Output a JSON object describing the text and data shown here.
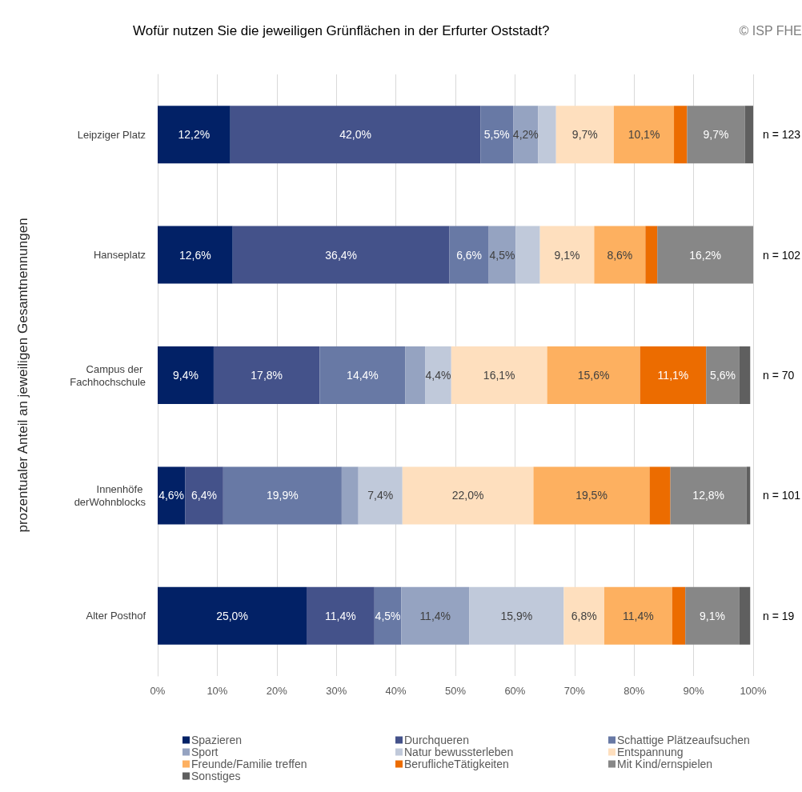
{
  "chart_data": {
    "type": "bar",
    "orientation": "horizontal",
    "stacked": true,
    "title": "Wofür nutzen Sie die jeweiligen Grünflächen in der Erfurter Oststadt?",
    "ylabel": "prozentualer Anteil an jeweiligen Gesamtnennungen",
    "categories": [
      "Leipziger Platz",
      "Hanseplatz",
      "Campus der Fachhochschule",
      "Innenhöfe derWohnblocks",
      "Alter Posthof"
    ],
    "xlim": [
      0,
      100
    ],
    "xticks": [
      {
        "value": 0,
        "label": "0%"
      },
      {
        "value": 10,
        "label": "10%"
      },
      {
        "value": 20,
        "label": "20%"
      },
      {
        "value": 30,
        "label": "30%"
      },
      {
        "value": 40,
        "label": "40%"
      },
      {
        "value": 50,
        "label": "50%"
      },
      {
        "value": 60,
        "label": "60%"
      },
      {
        "value": 70,
        "label": "70%"
      },
      {
        "value": 80,
        "label": "80%"
      },
      {
        "value": 90,
        "label": "90%"
      },
      {
        "value": 100,
        "label": "100%"
      }
    ],
    "grid": "x",
    "legend": "bottom",
    "series": [
      {
        "name": "Spazieren",
        "color": "#022166",
        "values": [
          12.2,
          12.6,
          9.4,
          4.6,
          25.0
        ],
        "value_labels": [
          "12,2%",
          "12,6%",
          "9,4%",
          "4,6%",
          "25,0%"
        ]
      },
      {
        "name": "Durchqueren",
        "color": "#44528a",
        "values": [
          42.0,
          36.4,
          17.8,
          6.4,
          11.4
        ],
        "value_labels": [
          "42,0%",
          "36,4%",
          "17,8%",
          "6,4%",
          "11,4%"
        ]
      },
      {
        "name": "Schattige Plätzeaufsuchen",
        "color": "#6879a5",
        "values": [
          5.5,
          6.6,
          14.4,
          19.9,
          4.5
        ],
        "value_labels": [
          "5,5%",
          "6,6%",
          "14,4%",
          "19,9%",
          "4,5%"
        ]
      },
      {
        "name": "Sport",
        "color": "#95a3c1",
        "values": [
          4.2,
          4.5,
          3.3,
          2.8,
          11.4
        ],
        "value_labels": [
          "4,2%",
          "4,5%",
          null,
          null,
          "11,4%"
        ]
      },
      {
        "name": "Natur bewussterleben",
        "color": "#c0c9da",
        "values": [
          3.0,
          4.1,
          4.4,
          7.4,
          15.9
        ],
        "value_labels": [
          null,
          null,
          "4,4%",
          "7,4%",
          "15,9%"
        ]
      },
      {
        "name": "Entspannung",
        "color": "#fedfbe",
        "values": [
          9.7,
          9.1,
          16.1,
          22.0,
          6.8
        ],
        "value_labels": [
          "9,7%",
          "9,1%",
          "16,1%",
          "22,0%",
          "6,8%"
        ]
      },
      {
        "name": "Freunde/Familie treffen",
        "color": "#fdb060",
        "values": [
          10.1,
          8.6,
          15.6,
          19.5,
          11.4
        ],
        "value_labels": [
          "10,1%",
          "8,6%",
          "15,6%",
          "19,5%",
          "11,4%"
        ]
      },
      {
        "name": "BeruflicheTätigkeiten",
        "color": "#ec6c00",
        "values": [
          2.2,
          2.0,
          11.1,
          3.5,
          2.2
        ],
        "value_labels": [
          null,
          null,
          "11,1%",
          null,
          null
        ]
      },
      {
        "name": "Mit Kind/ernspielen",
        "color": "#878787",
        "values": [
          9.7,
          16.2,
          5.6,
          12.8,
          9.1
        ],
        "value_labels": [
          "9,7%",
          "16,2%",
          "5,6%",
          "12,8%",
          "9,1%"
        ]
      },
      {
        "name": "Sonstiges",
        "color": "#5f5f5f",
        "values": [
          1.6,
          0,
          1.8,
          0.6,
          1.8
        ],
        "value_labels": [
          null,
          null,
          null,
          null,
          null
        ]
      }
    ],
    "annotations": [
      "© ISP FHE",
      "n = 123",
      "n = 102",
      "n = 70",
      "n = 101",
      "n = 19"
    ]
  }
}
